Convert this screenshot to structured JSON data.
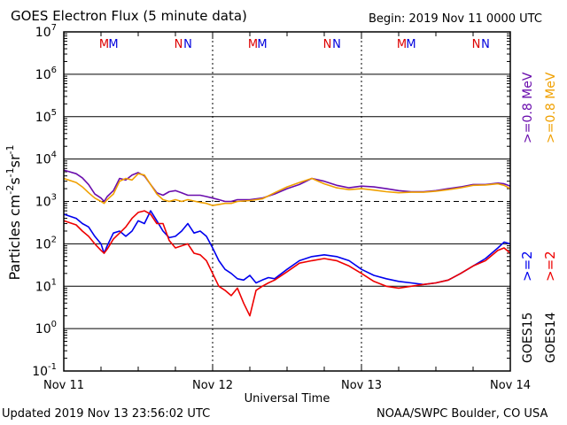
{
  "header": {
    "title": "GOES Electron Flux (5 minute data)",
    "begin": "Begin: 2019 Nov 11 0000 UTC"
  },
  "footer": {
    "updated": "Updated 2019 Nov 13 23:56:02 UTC",
    "credit": "NOAA/SWPC Boulder, CO USA"
  },
  "chart_data": {
    "type": "line",
    "title": "GOES Electron Flux (5 minute data)",
    "xlabel": "Universal Time",
    "ylabel_parts": [
      "Particles cm",
      "-2",
      "s",
      "-1",
      "sr",
      "-1"
    ],
    "yscale": "log",
    "ylim": [
      0.1,
      10000000
    ],
    "y_ticks": [
      {
        "base": "10",
        "exp": "-1",
        "value": 0.1
      },
      {
        "base": "10",
        "exp": "0",
        "value": 1
      },
      {
        "base": "10",
        "exp": "1",
        "value": 10
      },
      {
        "base": "10",
        "exp": "2",
        "value": 100
      },
      {
        "base": "10",
        "exp": "3",
        "value": 1000
      },
      {
        "base": "10",
        "exp": "4",
        "value": 10000
      },
      {
        "base": "10",
        "exp": "5",
        "value": 100000
      },
      {
        "base": "10",
        "exp": "6",
        "value": 1000000
      },
      {
        "base": "10",
        "exp": "7",
        "value": 10000000
      }
    ],
    "xlim": [
      0,
      72
    ],
    "x_unit": "hours since 2019 Nov 11 00:00 UTC",
    "x_ticks": [
      {
        "label": "Nov 11",
        "x": 0
      },
      {
        "label": "Nov 12",
        "x": 24
      },
      {
        "label": "Nov 13",
        "x": 48
      },
      {
        "label": "Nov 14",
        "x": 72
      }
    ],
    "threshold": {
      "value": 1000,
      "style": "dashed"
    },
    "markers": [
      {
        "label": "M",
        "x": 6.5,
        "color": "#dd0000"
      },
      {
        "label": "M",
        "x": 8.0,
        "color": "#0000dd"
      },
      {
        "label": "N",
        "x": 18.5,
        "color": "#dd0000"
      },
      {
        "label": "N",
        "x": 20.0,
        "color": "#0000dd"
      },
      {
        "label": "M",
        "x": 30.5,
        "color": "#dd0000"
      },
      {
        "label": "M",
        "x": 32.0,
        "color": "#0000dd"
      },
      {
        "label": "N",
        "x": 42.5,
        "color": "#dd0000"
      },
      {
        "label": "N",
        "x": 44.0,
        "color": "#0000dd"
      },
      {
        "label": "M",
        "x": 54.5,
        "color": "#dd0000"
      },
      {
        "label": "M",
        "x": 56.0,
        "color": "#0000dd"
      },
      {
        "label": "N",
        "x": 66.5,
        "color": "#dd0000"
      },
      {
        "label": "N",
        "x": 68.0,
        "color": "#0000dd"
      }
    ],
    "legend_placement": "right",
    "legend": [
      {
        "text": ">=0.8 MeV",
        "color": "#6a0dad",
        "group": "top",
        "col": 0
      },
      {
        "text": ">=0.8 MeV",
        "color": "#f0a000",
        "group": "top",
        "col": 1
      },
      {
        "text": ">=2",
        "color": "#0000ee",
        "group": "mid",
        "col": 0
      },
      {
        "text": ">=2",
        "color": "#ee0000",
        "group": "mid",
        "col": 1
      },
      {
        "text": "GOES15",
        "color": "#000000",
        "group": "bot",
        "col": 0
      },
      {
        "text": "GOES14",
        "color": "#000000",
        "group": "bot",
        "col": 1
      }
    ],
    "series": [
      {
        "name": "GOES15 >=0.8 MeV",
        "color": "#6a0dad",
        "x": [
          0,
          2,
          3,
          4,
          5,
          6,
          6.5,
          7,
          8,
          9,
          10,
          11,
          12,
          13,
          14,
          15,
          16,
          17,
          18,
          19,
          20,
          22,
          23,
          24,
          25,
          26,
          27,
          28,
          30,
          32,
          34,
          36,
          38,
          40,
          42,
          44,
          46,
          48,
          50,
          52,
          54,
          56,
          58,
          60,
          62,
          64,
          66,
          68,
          70,
          71,
          72
        ],
        "y": [
          5500,
          4500,
          3600,
          2500,
          1500,
          1200,
          1000,
          1300,
          1800,
          3500,
          3200,
          4200,
          4800,
          4000,
          2500,
          1600,
          1400,
          1700,
          1800,
          1600,
          1400,
          1400,
          1300,
          1200,
          1100,
          1000,
          1000,
          1100,
          1100,
          1200,
          1500,
          2000,
          2500,
          3500,
          3000,
          2400,
          2100,
          2300,
          2200,
          2000,
          1800,
          1700,
          1700,
          1800,
          2000,
          2200,
          2500,
          2500,
          2700,
          2600,
          2300
        ]
      },
      {
        "name": "GOES14 >=0.8 MeV",
        "color": "#f0a000",
        "x": [
          0,
          2,
          3,
          4,
          5,
          6,
          6.5,
          7,
          8,
          9,
          10,
          11,
          12,
          13,
          14,
          15,
          16,
          17,
          18,
          19,
          20,
          22,
          23,
          24,
          25,
          26,
          27,
          28,
          30,
          32,
          34,
          36,
          38,
          40,
          42,
          44,
          46,
          48,
          50,
          52,
          54,
          56,
          58,
          60,
          62,
          64,
          66,
          68,
          70,
          71,
          72
        ],
        "y": [
          3500,
          2800,
          2200,
          1600,
          1200,
          1000,
          900,
          1100,
          1500,
          3000,
          3500,
          3200,
          4500,
          4200,
          2500,
          1500,
          1100,
          1000,
          1100,
          1000,
          1100,
          950,
          900,
          800,
          850,
          900,
          900,
          1000,
          1050,
          1150,
          1600,
          2200,
          2800,
          3500,
          2600,
          2100,
          1900,
          2000,
          1850,
          1700,
          1600,
          1650,
          1650,
          1750,
          1900,
          2100,
          2400,
          2450,
          2600,
          2400,
          2000
        ]
      },
      {
        "name": "GOES15 >=2 MeV",
        "color": "#0000ee",
        "x": [
          0,
          2,
          3,
          4,
          5,
          6,
          6.5,
          7,
          8,
          9,
          10,
          11,
          12,
          13,
          14,
          15,
          16,
          17,
          18,
          19,
          20,
          21,
          22,
          23,
          24,
          25,
          26,
          27,
          28,
          29,
          30,
          31,
          32,
          33,
          34,
          36,
          38,
          40,
          42,
          44,
          46,
          48,
          50,
          52,
          54,
          56,
          58,
          60,
          62,
          64,
          66,
          68,
          70,
          71,
          72
        ],
        "y": [
          500,
          400,
          300,
          250,
          150,
          100,
          60,
          90,
          180,
          200,
          150,
          200,
          350,
          300,
          600,
          350,
          200,
          140,
          150,
          200,
          300,
          180,
          200,
          150,
          80,
          40,
          25,
          20,
          15,
          14,
          18,
          12,
          14,
          16,
          15,
          25,
          40,
          50,
          55,
          50,
          40,
          25,
          18,
          15,
          13,
          12,
          11,
          12,
          14,
          20,
          30,
          45,
          80,
          110,
          100
        ]
      },
      {
        "name": "GOES14 >=2 MeV",
        "color": "#ee0000",
        "x": [
          0,
          2,
          3,
          4,
          5,
          6,
          6.5,
          7,
          8,
          9,
          10,
          11,
          12,
          13,
          14,
          15,
          16,
          17,
          18,
          19,
          20,
          21,
          22,
          23,
          24,
          25,
          26,
          27,
          28,
          29,
          30,
          31,
          32,
          33,
          34,
          36,
          38,
          40,
          42,
          44,
          46,
          48,
          50,
          52,
          54,
          56,
          58,
          60,
          62,
          64,
          66,
          68,
          70,
          71,
          72
        ],
        "y": [
          350,
          280,
          200,
          150,
          100,
          70,
          60,
          75,
          130,
          180,
          250,
          400,
          550,
          600,
          500,
          300,
          300,
          120,
          80,
          90,
          100,
          60,
          55,
          40,
          20,
          10,
          8,
          6,
          9,
          4,
          2,
          8,
          10,
          12,
          14,
          22,
          35,
          40,
          45,
          40,
          30,
          20,
          13,
          10,
          9,
          10,
          11,
          12,
          14,
          20,
          30,
          40,
          70,
          80,
          60
        ]
      }
    ]
  }
}
